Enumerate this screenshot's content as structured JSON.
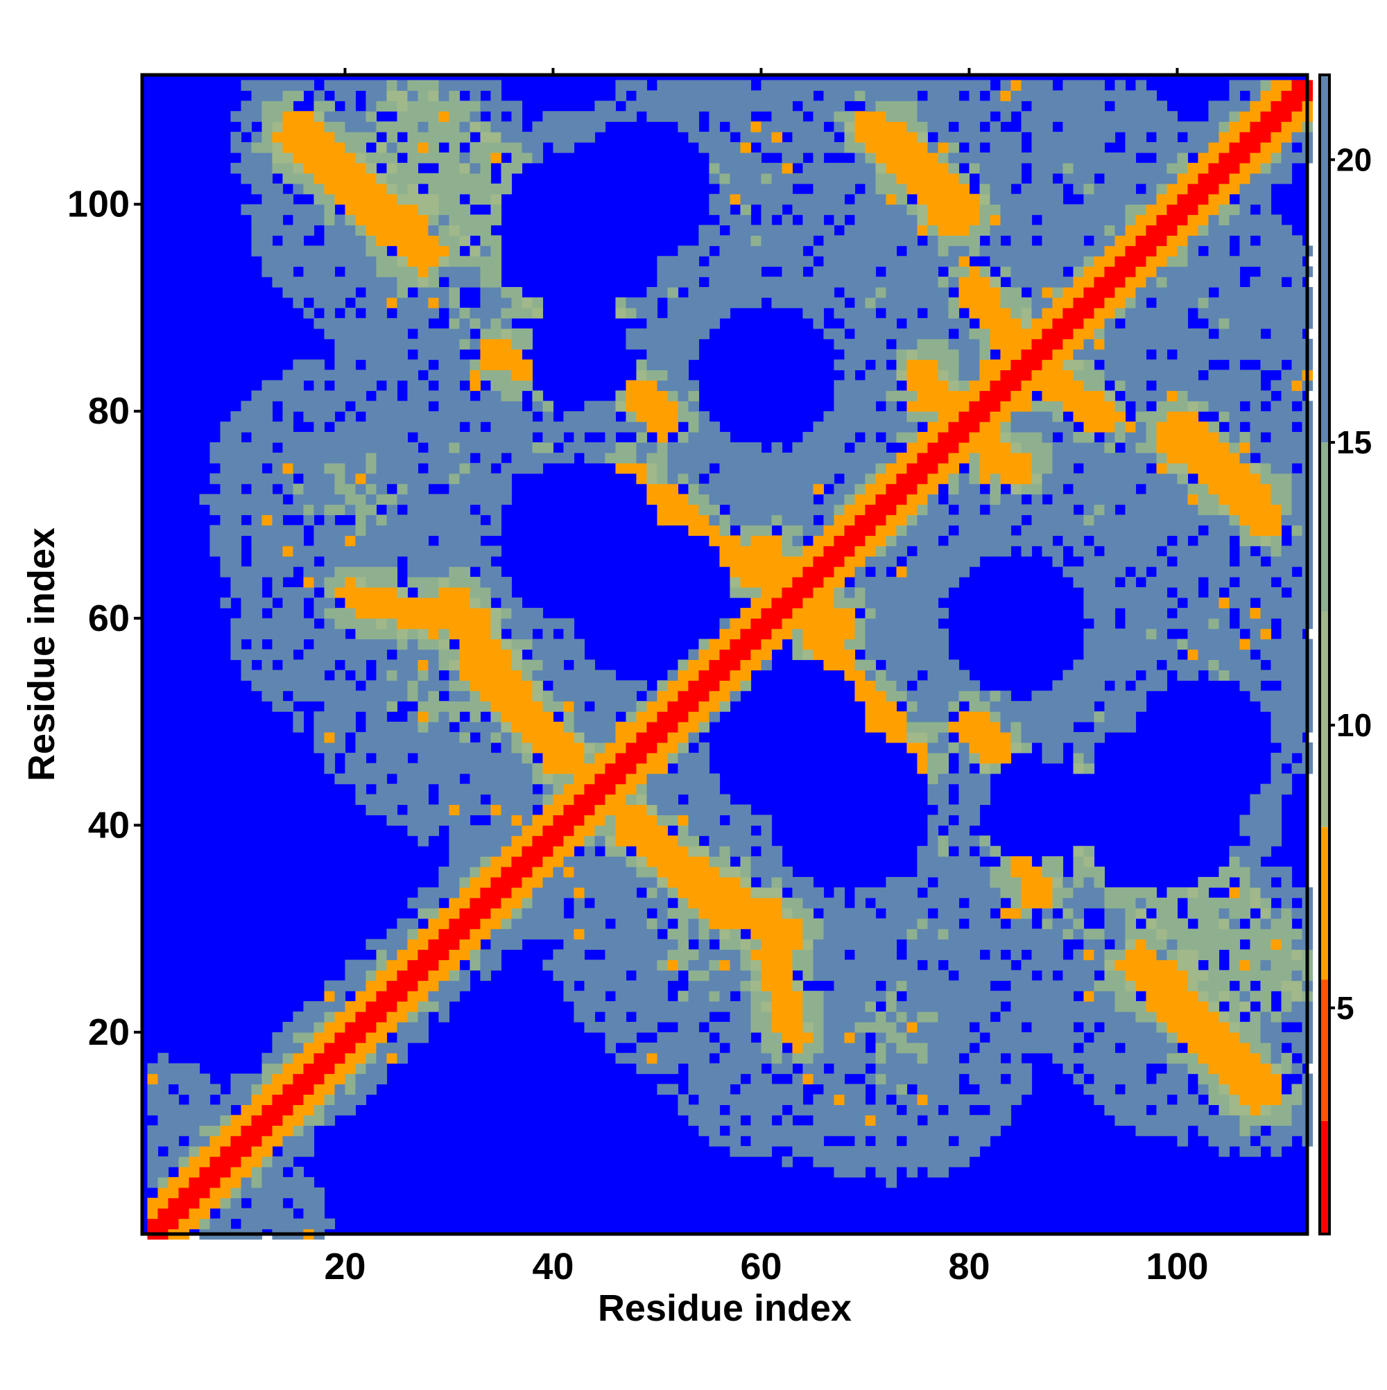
{
  "chart_data": {
    "type": "heatmap",
    "title": "",
    "xlabel": "Residue index",
    "ylabel": "Residue index",
    "xlim": [
      1,
      112
    ],
    "ylim": [
      1,
      112
    ],
    "x_ticks": [
      "20",
      "40",
      "60",
      "80",
      "100"
    ],
    "y_ticks": [
      "20",
      "40",
      "60",
      "80",
      "100"
    ],
    "colorbar": {
      "range": [
        1,
        21.5
      ],
      "ticks": [
        "5",
        "10",
        "15",
        "20"
      ],
      "scale": [
        {
          "max": 3,
          "color": "#ff0000"
        },
        {
          "max": 5.5,
          "color": "#ff5500"
        },
        {
          "max": 8.2,
          "color": "#ffa000"
        },
        {
          "max": 12,
          "color": "#a0b88a"
        },
        {
          "max": 15,
          "color": "#8fb08f"
        },
        {
          "max": 21.5,
          "color": "#5f86b0"
        },
        {
          "max": 9999,
          "color": "#0000ff"
        }
      ]
    },
    "value_field": "pairwise distance (values > 21.5 shown as background blue)",
    "main_diagonal": {
      "from": 1,
      "to": 112,
      "value": 1
    },
    "contact_bands": [
      {
        "i_start": 15,
        "j_start": 107,
        "i_end": 27,
        "j_end": 96,
        "value": 6.5,
        "width": 4
      },
      {
        "i_start": 27,
        "j_start": 107,
        "i_end": 42,
        "j_end": 92,
        "value": 13,
        "width": 8
      },
      {
        "i_start": 34,
        "j_start": 86,
        "i_end": 40,
        "j_end": 84,
        "value": 7,
        "width": 3
      },
      {
        "i_start": 48,
        "j_start": 82,
        "i_end": 50,
        "j_end": 80,
        "value": 8,
        "width": 3
      },
      {
        "i_start": 50,
        "j_start": 72,
        "i_end": 56,
        "j_end": 66,
        "value": 7,
        "width": 3
      },
      {
        "i_start": 72,
        "j_start": 107,
        "i_end": 79,
        "j_end": 100,
        "value": 7,
        "width": 3
      },
      {
        "i_start": 68,
        "j_start": 52,
        "i_end": 74,
        "j_end": 47,
        "value": 7,
        "width": 3
      },
      {
        "i_start": 32,
        "j_start": 56,
        "i_end": 41,
        "j_end": 47,
        "value": 7,
        "width": 3
      },
      {
        "i_start": 22,
        "j_start": 62,
        "i_end": 32,
        "j_end": 60,
        "value": 7,
        "width": 3
      },
      {
        "i_start": 47,
        "j_start": 40,
        "i_end": 62,
        "j_end": 30,
        "value": 7,
        "width": 3
      },
      {
        "i_start": 99,
        "j_start": 78,
        "i_end": 108,
        "j_end": 70,
        "value": 7,
        "width": 3
      },
      {
        "i_start": 98,
        "j_start": 26,
        "i_end": 108,
        "j_end": 15,
        "value": 7,
        "width": 3
      },
      {
        "i_start": 84,
        "j_start": 40,
        "i_end": 86,
        "j_end": 35,
        "value": 7,
        "width": 2
      },
      {
        "i_start": 75,
        "j_start": 84,
        "i_end": 82,
        "j_end": 76,
        "value": 7,
        "width": 3
      },
      {
        "i_start": 83,
        "j_start": 88,
        "i_end": 92,
        "j_end": 80,
        "value": 8,
        "width": 3
      },
      {
        "i_start": 60,
        "j_start": 28,
        "i_end": 63,
        "j_end": 20,
        "value": 8,
        "width": 2
      },
      {
        "i_start": 60,
        "j_start": 67,
        "i_end": 67,
        "j_end": 56,
        "value": 7,
        "width": 3
      }
    ],
    "contact_blobs": [
      {
        "i": 25,
        "j": 100,
        "r": 14,
        "value": 14
      },
      {
        "i": 20,
        "j": 72,
        "r": 14,
        "value": 14
      },
      {
        "i": 28,
        "j": 52,
        "r": 12,
        "value": 14
      },
      {
        "i": 37,
        "j": 78,
        "r": 16,
        "value": 15
      },
      {
        "i": 42,
        "j": 96,
        "r": 14,
        "value": 15
      },
      {
        "i": 55,
        "j": 102,
        "r": 14,
        "value": 15
      },
      {
        "i": 70,
        "j": 92,
        "r": 16,
        "value": 15
      },
      {
        "i": 90,
        "j": 102,
        "r": 12,
        "value": 15
      },
      {
        "i": 62,
        "j": 80,
        "r": 15,
        "value": 15
      },
      {
        "i": 82,
        "j": 62,
        "r": 16,
        "value": 15
      },
      {
        "i": 100,
        "j": 60,
        "r": 16,
        "value": 15
      },
      {
        "i": 100,
        "j": 80,
        "r": 14,
        "value": 15
      },
      {
        "i": 70,
        "j": 52,
        "r": 14,
        "value": 15
      },
      {
        "i": 92,
        "j": 48,
        "r": 14,
        "value": 15
      },
      {
        "i": 75,
        "j": 30,
        "r": 16,
        "value": 15
      },
      {
        "i": 62,
        "j": 22,
        "r": 14,
        "value": 15
      },
      {
        "i": 100,
        "j": 22,
        "r": 12,
        "value": 15
      },
      {
        "i": 90,
        "j": 32,
        "r": 14,
        "value": 15
      },
      {
        "i": 50,
        "j": 35,
        "r": 14,
        "value": 15
      },
      {
        "i": 52,
        "j": 62,
        "r": 12,
        "value": 15
      },
      {
        "i": 12,
        "j": 2,
        "r": 6,
        "value": 16
      }
    ],
    "voids": [
      {
        "i": 49,
        "j": 62,
        "r": 8
      },
      {
        "i": 68,
        "j": 42,
        "r": 8
      },
      {
        "i": 98,
        "j": 42,
        "r": 8
      },
      {
        "i": 48,
        "j": 102,
        "r": 7
      },
      {
        "i": 60,
        "j": 84,
        "r": 7
      },
      {
        "i": 86,
        "j": 42,
        "r": 5
      }
    ]
  }
}
